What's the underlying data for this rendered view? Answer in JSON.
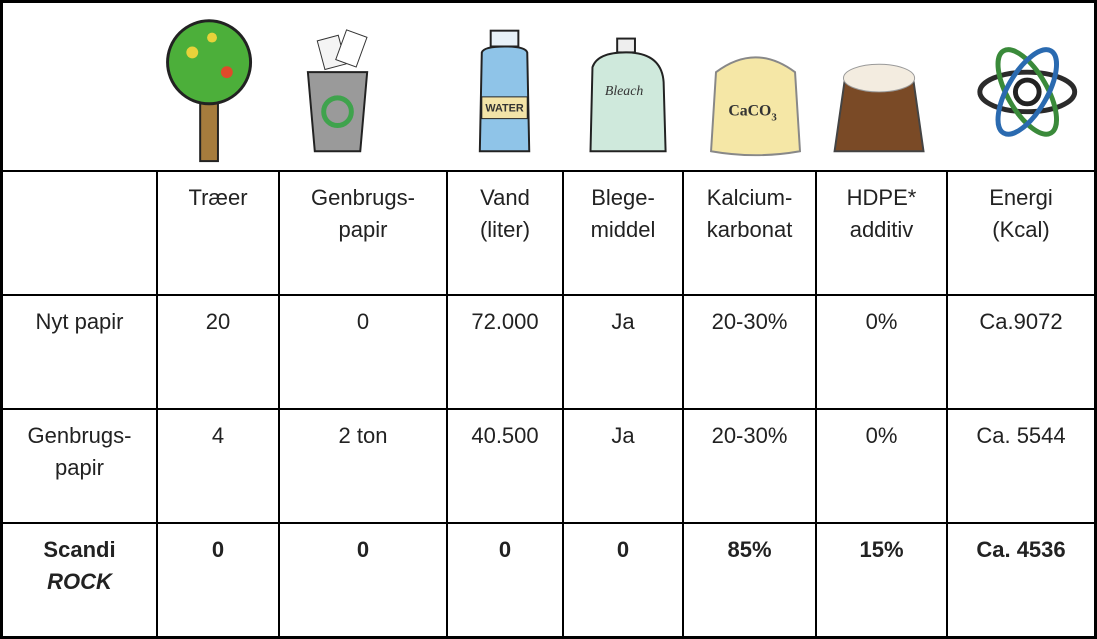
{
  "icons": {
    "water_label": "WATER",
    "bleach_label": "Bleach",
    "caco3_label": "CaCO",
    "caco3_subscript": "3"
  },
  "table": {
    "headers": [
      [
        "Træer"
      ],
      [
        "Genbrugs-",
        "papir"
      ],
      [
        "Vand",
        "(liter)"
      ],
      [
        "Blege-",
        "middel"
      ],
      [
        "Kalcium-",
        "karbonat"
      ],
      [
        "HDPE*",
        "additiv"
      ],
      [
        "Energi",
        "(Kcal)"
      ]
    ],
    "rows": [
      {
        "label": [
          "Nyt papir"
        ],
        "cells": [
          "20",
          "0",
          "72.000",
          "Ja",
          "20-30%",
          "0%",
          "Ca.9072"
        ]
      },
      {
        "label": [
          "Genbrugs-",
          "papir"
        ],
        "cells": [
          "4",
          "2 ton",
          "40.500",
          "Ja",
          "20-30%",
          "0%",
          "Ca. 5544"
        ]
      },
      {
        "label": [
          "Scandi",
          "ROCK"
        ],
        "cells": [
          "0",
          "0",
          "0",
          "0",
          "85%",
          "15%",
          "Ca. 4536"
        ]
      }
    ]
  }
}
